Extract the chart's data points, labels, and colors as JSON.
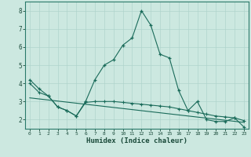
{
  "xlabel": "Humidex (Indice chaleur)",
  "bg_color": "#cce8e0",
  "grid_color": "#b0d4cc",
  "line_color": "#1a6b5a",
  "line1_x": [
    0,
    1,
    2,
    3,
    4,
    5,
    6,
    7,
    8,
    9,
    10,
    11,
    12,
    13,
    14,
    15,
    16,
    17,
    18,
    19,
    20,
    21,
    22,
    23
  ],
  "line1_y": [
    4.2,
    3.7,
    3.3,
    2.7,
    2.5,
    2.2,
    3.0,
    4.2,
    5.0,
    5.3,
    6.1,
    6.5,
    8.0,
    7.2,
    5.6,
    5.4,
    3.6,
    2.5,
    3.0,
    2.0,
    1.9,
    1.9,
    2.1,
    1.6
  ],
  "line2_x": [
    0,
    1,
    2,
    3,
    4,
    5,
    6,
    7,
    8,
    9,
    10,
    11,
    12,
    13,
    14,
    15,
    16,
    17,
    18,
    19,
    20,
    21,
    22,
    23
  ],
  "line2_y": [
    4.0,
    3.5,
    3.3,
    2.7,
    2.5,
    2.2,
    2.95,
    3.0,
    3.0,
    3.0,
    2.95,
    2.9,
    2.85,
    2.8,
    2.75,
    2.7,
    2.6,
    2.5,
    2.4,
    2.3,
    2.2,
    2.15,
    2.1,
    1.95
  ],
  "line3_x": [
    0,
    23
  ],
  "line3_y": [
    3.2,
    1.85
  ],
  "ylim": [
    1.5,
    8.5
  ],
  "xlim": [
    -0.5,
    23.5
  ],
  "yticks": [
    2,
    3,
    4,
    5,
    6,
    7,
    8
  ],
  "xticks": [
    0,
    1,
    2,
    3,
    4,
    5,
    6,
    7,
    8,
    9,
    10,
    11,
    12,
    13,
    14,
    15,
    16,
    17,
    18,
    19,
    20,
    21,
    22,
    23
  ]
}
